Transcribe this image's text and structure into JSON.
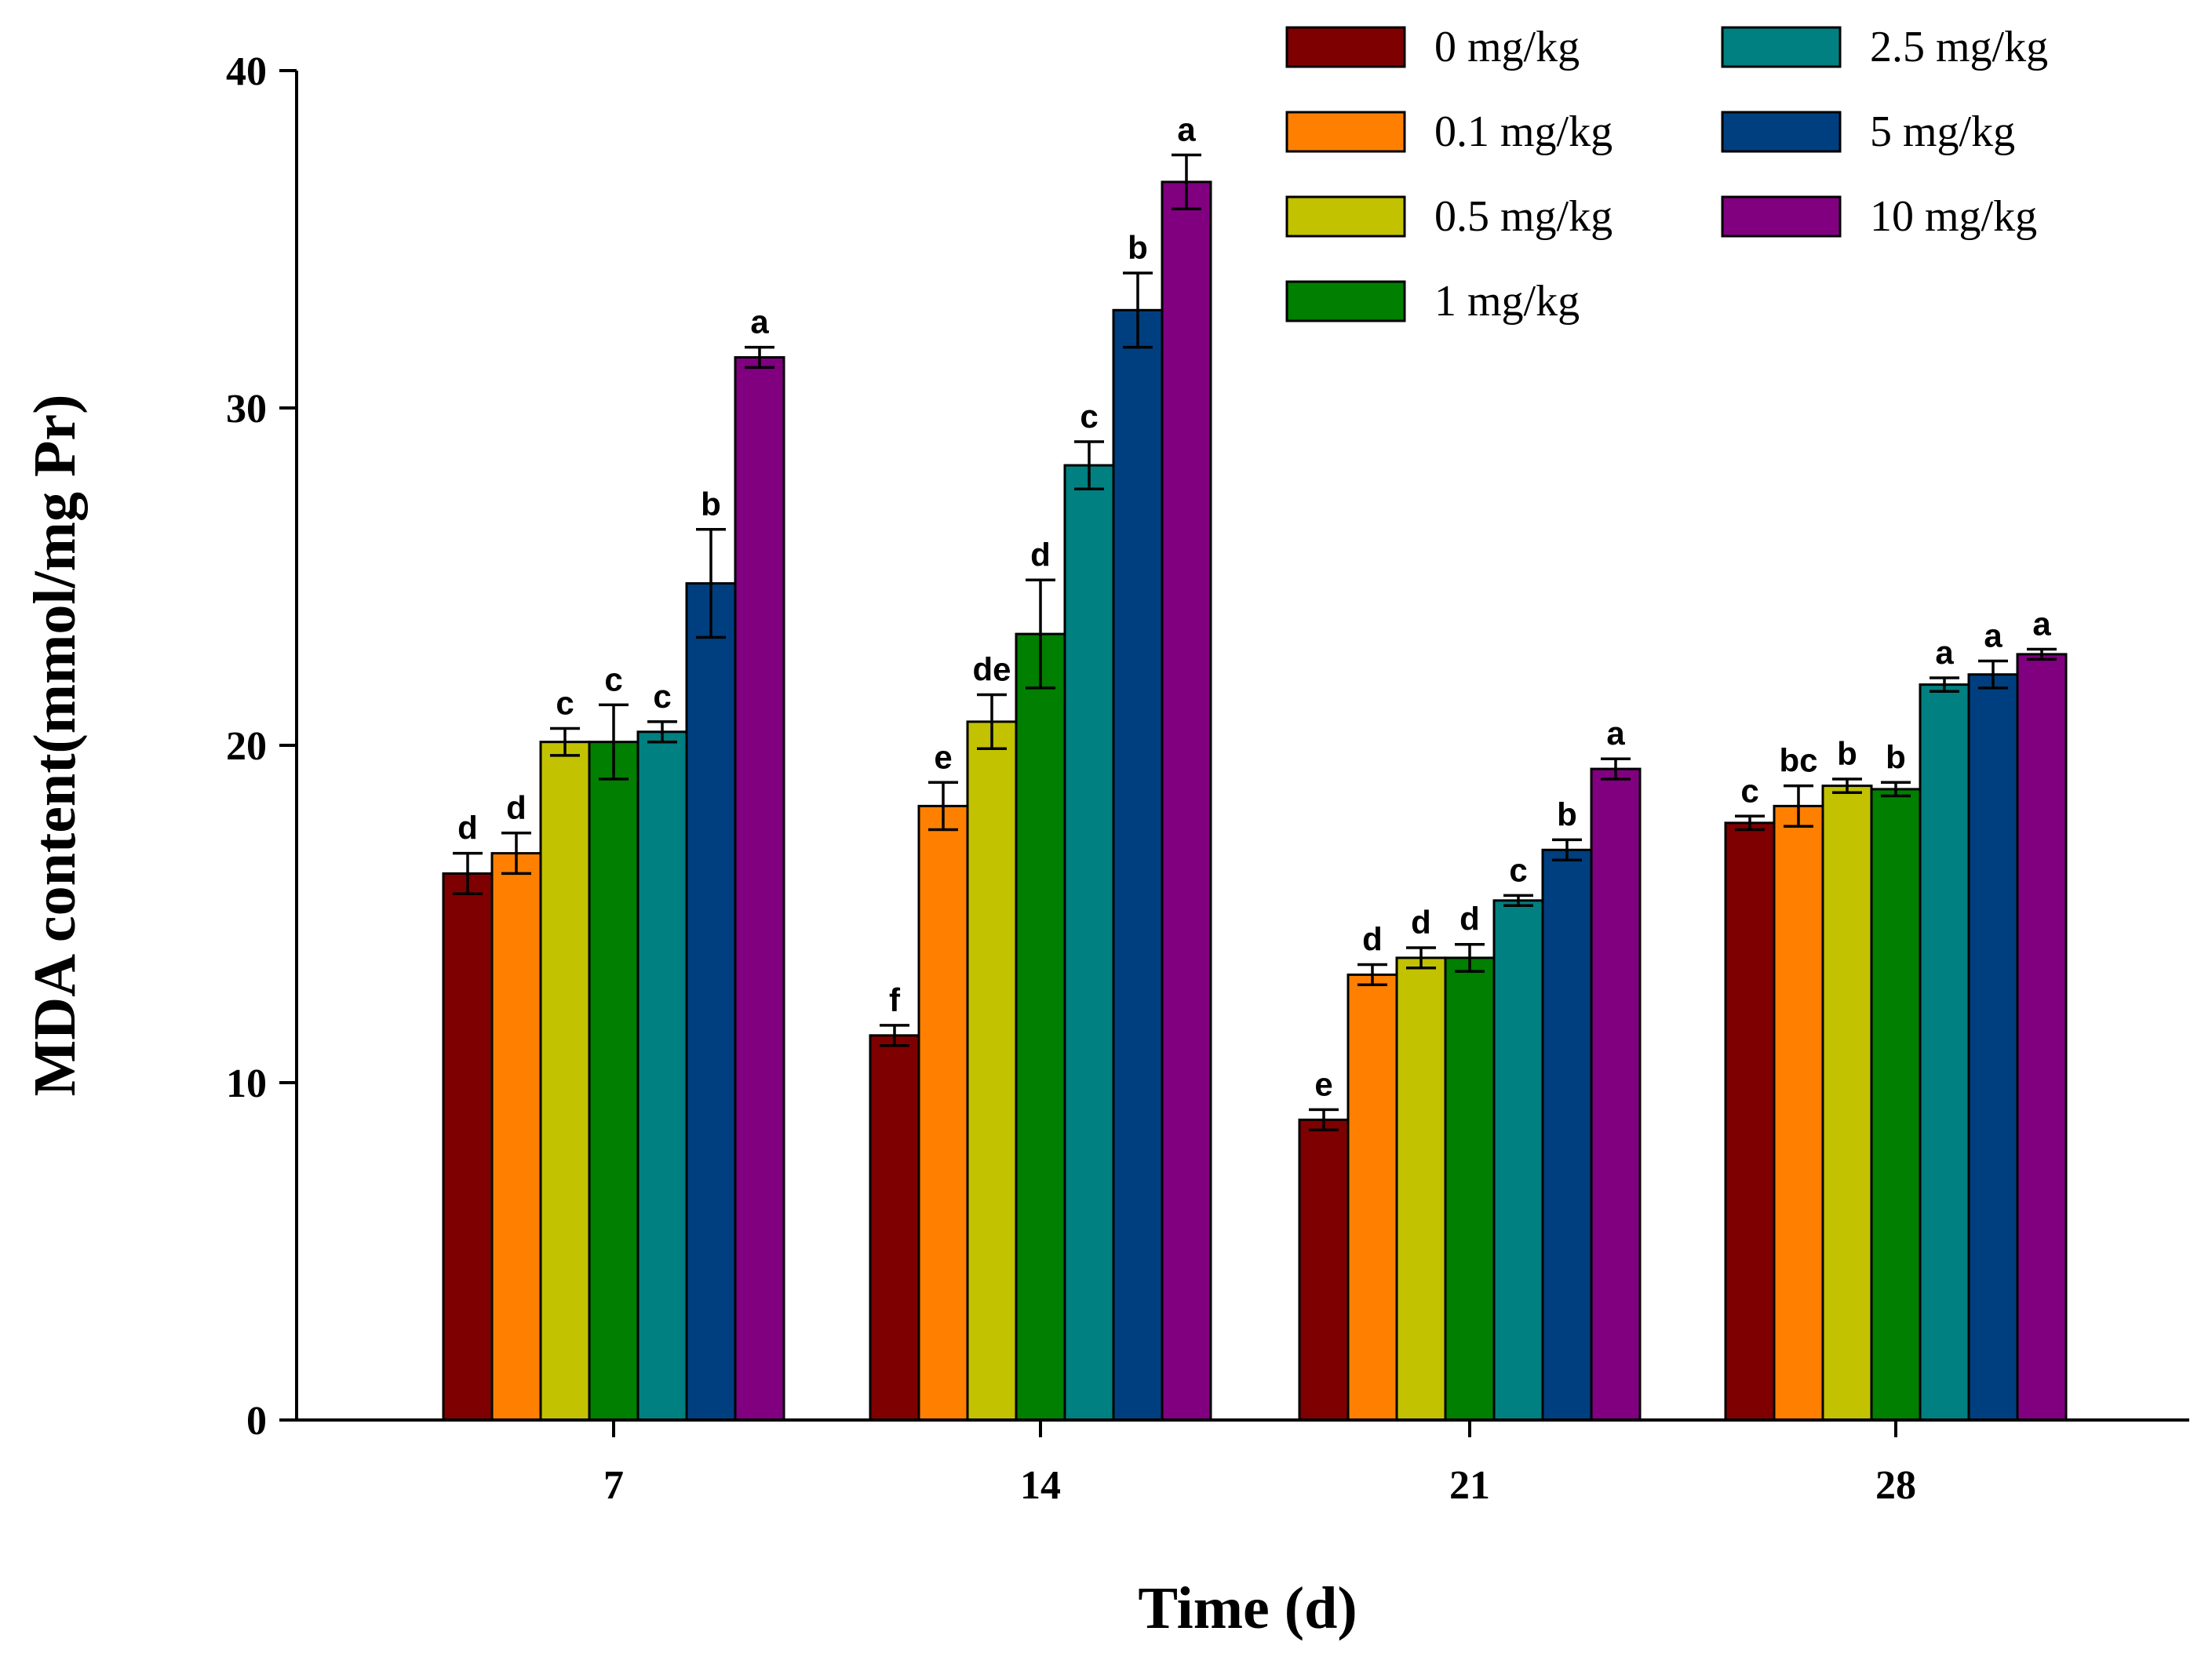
{
  "chart_data": {
    "type": "bar",
    "xlabel": "Time (d)",
    "ylabel": "MDA content(mmol/mg Pr)",
    "ylim": [
      0,
      40
    ],
    "yticks": [
      0,
      10,
      20,
      30,
      40
    ],
    "categories": [
      "7",
      "14",
      "21",
      "28"
    ],
    "legend_position": "top-right",
    "grid": false,
    "series": [
      {
        "name": "0 mg/kg",
        "color": "#7F0000",
        "values": [
          16.2,
          11.4,
          8.9,
          17.7
        ],
        "errors": [
          0.6,
          0.3,
          0.3,
          0.2
        ],
        "labels": [
          "d",
          "f",
          "e",
          "c"
        ]
      },
      {
        "name": "0.1 mg/kg",
        "color": "#FF8000",
        "values": [
          16.8,
          18.2,
          13.2,
          18.2
        ],
        "errors": [
          0.6,
          0.7,
          0.3,
          0.6
        ],
        "labels": [
          "d",
          "e",
          "d",
          "bc"
        ]
      },
      {
        "name": "0.5 mg/kg",
        "color": "#C2C200",
        "values": [
          20.1,
          20.7,
          13.7,
          18.8
        ],
        "errors": [
          0.4,
          0.8,
          0.3,
          0.2
        ],
        "labels": [
          "c",
          "de",
          "d",
          "b"
        ]
      },
      {
        "name": "1 mg/kg",
        "color": "#007F00",
        "values": [
          20.1,
          23.3,
          13.7,
          18.7
        ],
        "errors": [
          1.1,
          1.6,
          0.4,
          0.2
        ],
        "labels": [
          "c",
          "d",
          "d",
          "b"
        ]
      },
      {
        "name": "2.5 mg/kg",
        "color": "#008080",
        "values": [
          20.4,
          28.3,
          15.4,
          21.8
        ],
        "errors": [
          0.3,
          0.7,
          0.15,
          0.2
        ],
        "labels": [
          "c",
          "c",
          "c",
          "a"
        ]
      },
      {
        "name": "5 mg/kg",
        "color": "#003F7F",
        "values": [
          24.8,
          32.9,
          16.9,
          22.1
        ],
        "errors": [
          1.6,
          1.1,
          0.3,
          0.4
        ],
        "labels": [
          "b",
          "b",
          "b",
          "a"
        ]
      },
      {
        "name": "10 mg/kg",
        "color": "#800080",
        "values": [
          31.5,
          36.7,
          19.3,
          22.7
        ],
        "errors": [
          0.3,
          0.8,
          0.3,
          0.15
        ],
        "labels": [
          "a",
          "a",
          "a",
          "a"
        ]
      }
    ]
  }
}
